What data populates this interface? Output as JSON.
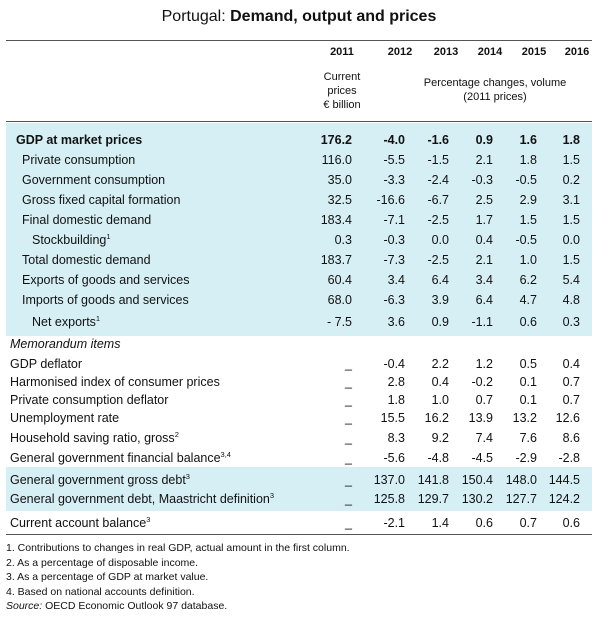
{
  "title_prefix": "Portugal: ",
  "title_main": "Demand, output and prices",
  "years": [
    "2011",
    "2012",
    "2013",
    "2014",
    "2015",
    "2016"
  ],
  "subheader_left": [
    "Current",
    "prices",
    "€ billion"
  ],
  "subheader_right": [
    "Percentage changes, volume",
    "(2011 prices)"
  ],
  "rows": [
    {
      "label": "GDP at market prices",
      "values": [
        "176.2",
        "-4.0",
        "-1.6",
        "0.9",
        "1.6",
        "1.8"
      ]
    },
    {
      "label": "Private consumption",
      "values": [
        "116.0",
        "-5.5",
        "-1.5",
        "2.1",
        "1.8",
        "1.5"
      ]
    },
    {
      "label": "Government consumption",
      "values": [
        "35.0",
        "-3.3",
        "-2.4",
        "-0.3",
        "-0.5",
        "0.2"
      ]
    },
    {
      "label": "Gross fixed capital formation",
      "values": [
        "32.5",
        "-16.6",
        "-6.7",
        "2.5",
        "2.9",
        "3.1"
      ]
    },
    {
      "label": "Final domestic demand",
      "values": [
        "183.4",
        "-7.1",
        "-2.5",
        "1.7",
        "1.5",
        "1.5"
      ]
    },
    {
      "label": "Stockbuilding",
      "sup": "1",
      "values": [
        "0.3",
        "-0.3",
        "0.0",
        "0.4",
        "-0.5",
        "0.0"
      ]
    },
    {
      "label": "Total domestic demand",
      "values": [
        "183.7",
        "-7.3",
        "-2.5",
        "2.1",
        "1.0",
        "1.5"
      ]
    },
    {
      "label": "Exports of goods and services",
      "values": [
        "60.4",
        "3.4",
        "6.4",
        "3.4",
        "6.2",
        "5.4"
      ]
    },
    {
      "label": "Imports of goods and services",
      "values": [
        "68.0",
        "-6.3",
        "3.9",
        "6.4",
        "4.7",
        "4.8"
      ]
    },
    {
      "label": "Net exports",
      "sup": "1",
      "values": [
        "- 7.5",
        "3.6",
        "0.9",
        "-1.1",
        "0.6",
        "0.3"
      ]
    }
  ],
  "memo_title": "Memorandum items",
  "memo_rows": [
    {
      "label": "GDP deflator",
      "values": [
        "_",
        "-0.4",
        "2.2",
        "1.2",
        "0.5",
        "0.4"
      ]
    },
    {
      "label": "Harmonised index of consumer prices",
      "values": [
        "_",
        "2.8",
        "0.4",
        "-0.2",
        "0.1",
        "0.7"
      ]
    },
    {
      "label": "Private consumption deflator",
      "values": [
        "_",
        "1.8",
        "1.0",
        "0.7",
        "0.1",
        "0.7"
      ]
    },
    {
      "label": "Unemployment rate",
      "values": [
        "_",
        "15.5",
        "16.2",
        "13.9",
        "13.2",
        "12.6"
      ]
    },
    {
      "label": "Household saving ratio, gross",
      "sup": "2",
      "values": [
        "_",
        "8.3",
        "9.2",
        "7.4",
        "7.6",
        "8.6"
      ]
    },
    {
      "label": "General government financial balance",
      "sup": "3,4",
      "values": [
        "_",
        "-5.6",
        "-4.8",
        "-4.5",
        "-2.9",
        "-2.8"
      ]
    },
    {
      "label": "General government gross debt",
      "sup": "3",
      "values": [
        "_",
        "137.0",
        "141.8",
        "150.4",
        "148.0",
        "144.5"
      ]
    },
    {
      "label": "General government debt, Maastricht definition",
      "sup": "3",
      "values": [
        "_",
        "125.8",
        "129.7",
        "130.2",
        "127.7",
        "124.2"
      ]
    },
    {
      "label": "Current account balance",
      "sup": "3",
      "values": [
        "_",
        "-2.1",
        "1.4",
        "0.6",
        "0.7",
        "0.6"
      ]
    }
  ],
  "notes": [
    "1. Contributions to changes in real GDP, actual amount in the first column.",
    "2. As a percentage of disposable income.",
    "3. As a percentage of GDP at market value.",
    "4. Based on national accounts definition."
  ],
  "source_label": "Source:",
  "source_text": " OECD Economic Outlook 97 database.",
  "colors": {
    "band": "#d6eff4",
    "rule": "#555555"
  }
}
